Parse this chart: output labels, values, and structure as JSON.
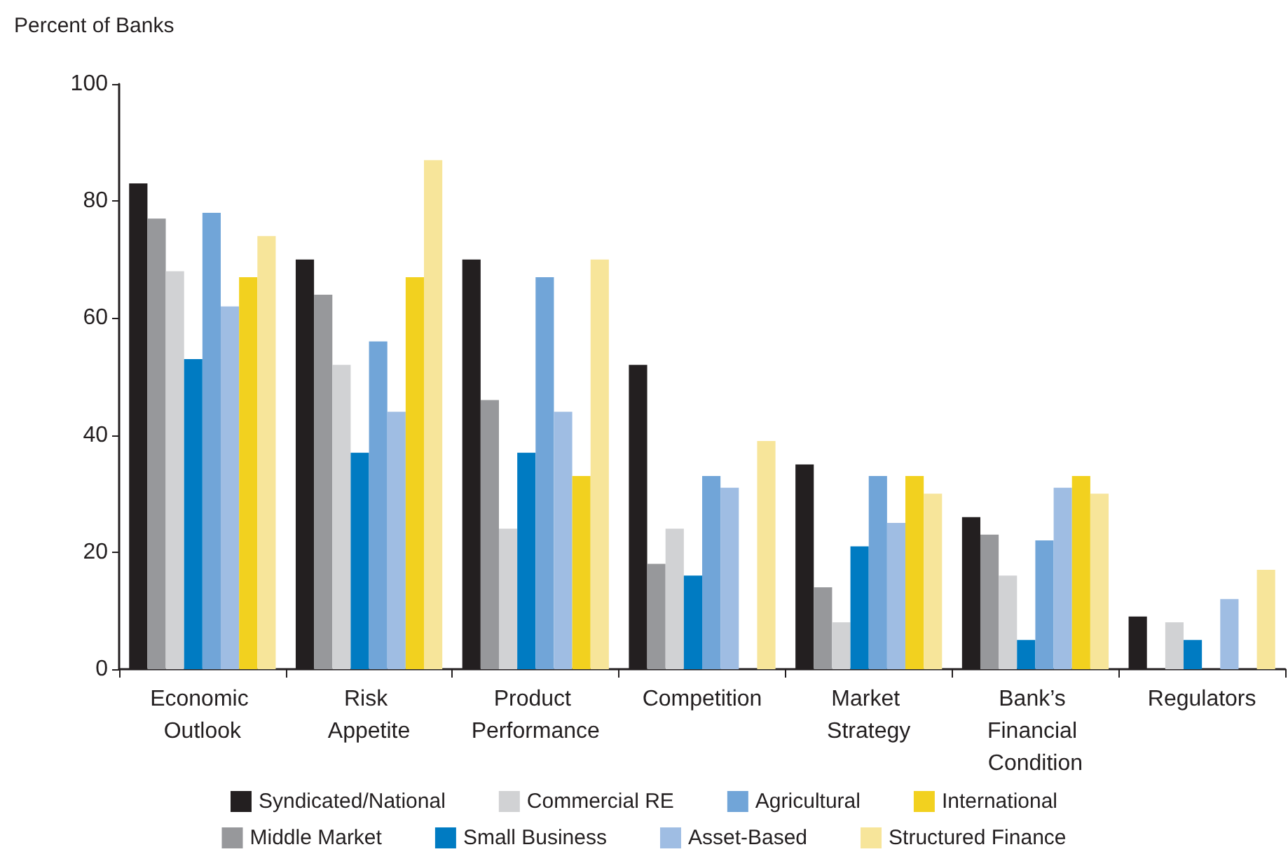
{
  "chart_data": {
    "type": "bar",
    "ylabel": "Percent of Banks",
    "categories": [
      "Economic Outlook",
      "Risk Appetite",
      "Product Performance",
      "Competition",
      "Market Strategy",
      "Bank’s Financial Condition",
      "Regulators"
    ],
    "series": [
      {
        "name": "Syndicated/National",
        "color": "#231f20",
        "values": [
          83,
          70,
          70,
          52,
          35,
          26,
          9
        ]
      },
      {
        "name": "Middle Market",
        "color": "#97989b",
        "values": [
          77,
          64,
          46,
          18,
          14,
          23,
          0
        ]
      },
      {
        "name": "Commercial RE",
        "color": "#d1d2d4",
        "values": [
          68,
          52,
          24,
          24,
          8,
          16,
          8
        ]
      },
      {
        "name": "Small Business",
        "color": "#007bc2",
        "values": [
          53,
          37,
          37,
          16,
          21,
          5,
          5
        ]
      },
      {
        "name": "Agricultural",
        "color": "#71a5d8",
        "values": [
          78,
          56,
          67,
          33,
          33,
          22,
          0
        ]
      },
      {
        "name": "Asset-Based",
        "color": "#9fbde3",
        "values": [
          62,
          44,
          44,
          31,
          25,
          31,
          12
        ]
      },
      {
        "name": "International",
        "color": "#f2d11f",
        "values": [
          67,
          67,
          33,
          0,
          33,
          33,
          0
        ]
      },
      {
        "name": "Structured Finance",
        "color": "#f7e59a",
        "values": [
          74,
          87,
          70,
          39,
          30,
          30,
          17
        ]
      }
    ],
    "ylim": [
      0,
      100
    ],
    "yticks": [
      0,
      20,
      40,
      60,
      80,
      100
    ],
    "grid": false,
    "legend": "bottom"
  }
}
